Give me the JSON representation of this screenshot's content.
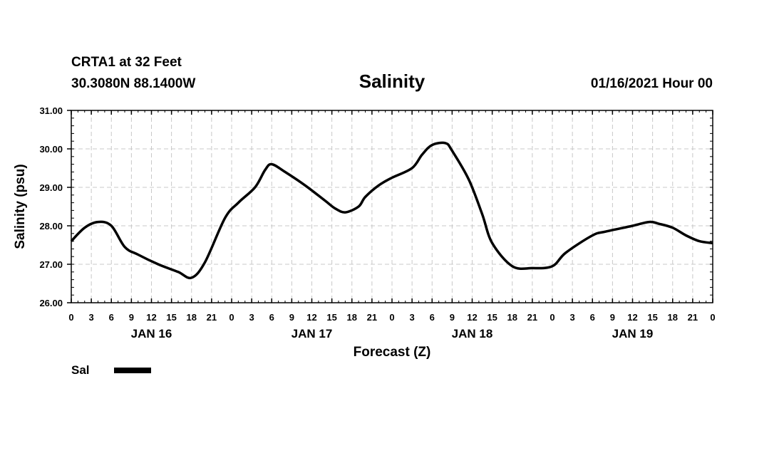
{
  "header": {
    "station": "CRTA1 at 32 Feet",
    "coords": "30.3080N 88.1400W",
    "title": "Salinity",
    "date": "01/16/2021 Hour 00"
  },
  "legend": {
    "label": "Sal"
  },
  "chart_data": {
    "type": "line",
    "title": "Salinity",
    "xlabel": "Forecast (Z)",
    "ylabel": "Salinity (psu)",
    "ylim": [
      26.0,
      31.0
    ],
    "yticks": [
      "26.00",
      "27.00",
      "28.00",
      "29.00",
      "30.00",
      "31.00"
    ],
    "xlim_hours": [
      0,
      96
    ],
    "xtick_step_hours": 3,
    "xticks": [
      "0",
      "3",
      "6",
      "9",
      "12",
      "15",
      "18",
      "21",
      "0",
      "3",
      "6",
      "9",
      "12",
      "15",
      "18",
      "21",
      "0",
      "3",
      "6",
      "9",
      "12",
      "15",
      "18",
      "21",
      "0",
      "3",
      "6",
      "9",
      "12",
      "15",
      "18",
      "21",
      "0"
    ],
    "day_labels": [
      {
        "label": "JAN 16",
        "hour": 12
      },
      {
        "label": "JAN 17",
        "hour": 36
      },
      {
        "label": "JAN 18",
        "hour": 60
      },
      {
        "label": "JAN 19",
        "hour": 84
      }
    ],
    "grid": true,
    "legend_position": "bottom-left",
    "series": [
      {
        "name": "Sal",
        "color": "#000000",
        "x": [
          0,
          2,
          4,
          6,
          8,
          10,
          13,
          16,
          18,
          20,
          23,
          25,
          27.5,
          29,
          30,
          32,
          35,
          38,
          39.5,
          41,
          43,
          44,
          46,
          48,
          51,
          52.5,
          54,
          56,
          57,
          59.5,
          61.5,
          63,
          66,
          69,
          72,
          74,
          78,
          80,
          84,
          86.5,
          88,
          90,
          92,
          94,
          96
        ],
        "values": [
          27.6,
          27.95,
          28.1,
          28.0,
          27.45,
          27.25,
          27.0,
          26.8,
          26.65,
          27.05,
          28.2,
          28.6,
          29.0,
          29.45,
          29.6,
          29.4,
          29.05,
          28.65,
          28.45,
          28.35,
          28.5,
          28.75,
          29.05,
          29.25,
          29.5,
          29.85,
          30.1,
          30.15,
          29.95,
          29.2,
          28.3,
          27.55,
          26.95,
          26.9,
          26.95,
          27.3,
          27.75,
          27.85,
          28.0,
          28.1,
          28.05,
          27.95,
          27.75,
          27.6,
          27.55
        ]
      }
    ]
  }
}
